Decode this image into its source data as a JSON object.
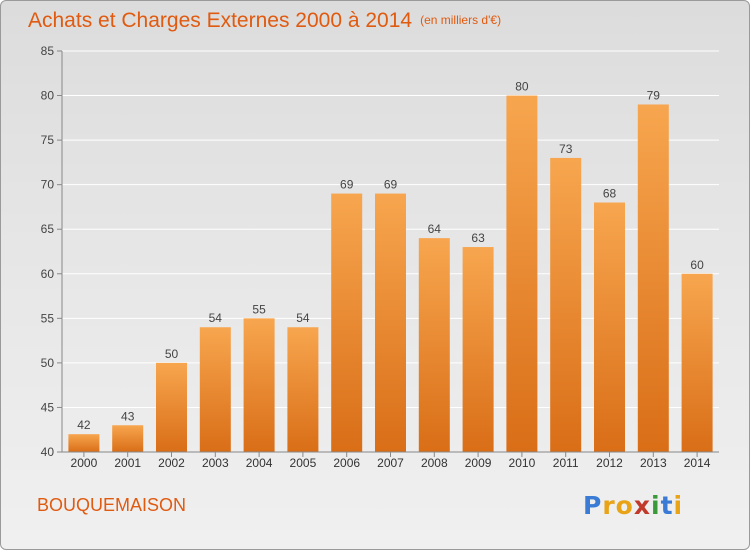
{
  "title": "Achats et Charges Externes 2000 à 2014",
  "subtitle": "(en milliers d'€)",
  "commune": "BOUQUEMAISON",
  "logo": {
    "text": "Proxiti",
    "letters": [
      {
        "char": "P",
        "color": "#3a7bd5"
      },
      {
        "char": "r",
        "color": "#e8a317"
      },
      {
        "char": "o",
        "color": "#e8a317"
      },
      {
        "char": "x",
        "color": "#c0392b"
      },
      {
        "char": "i",
        "color": "#3a9a3a"
      },
      {
        "char": "t",
        "color": "#3a7bd5"
      },
      {
        "char": "i",
        "color": "#e8a317"
      }
    ]
  },
  "colors": {
    "accent": "#e05a10",
    "bar_top": "#f7a64f",
    "bar_bottom": "#d96e17",
    "axis": "#888888",
    "grid": "#ffffff"
  },
  "chart_data": {
    "type": "bar",
    "categories": [
      "2000",
      "2001",
      "2002",
      "2003",
      "2004",
      "2005",
      "2006",
      "2007",
      "2008",
      "2009",
      "2010",
      "2011",
      "2012",
      "2013",
      "2014"
    ],
    "values": [
      42,
      43,
      50,
      54,
      55,
      54,
      69,
      69,
      64,
      63,
      80,
      73,
      68,
      79,
      60
    ],
    "ylim": [
      40,
      85
    ],
    "yticks": [
      40,
      45,
      50,
      55,
      60,
      65,
      70,
      75,
      80,
      85
    ],
    "grid": true,
    "xlabel": "",
    "ylabel": ""
  }
}
